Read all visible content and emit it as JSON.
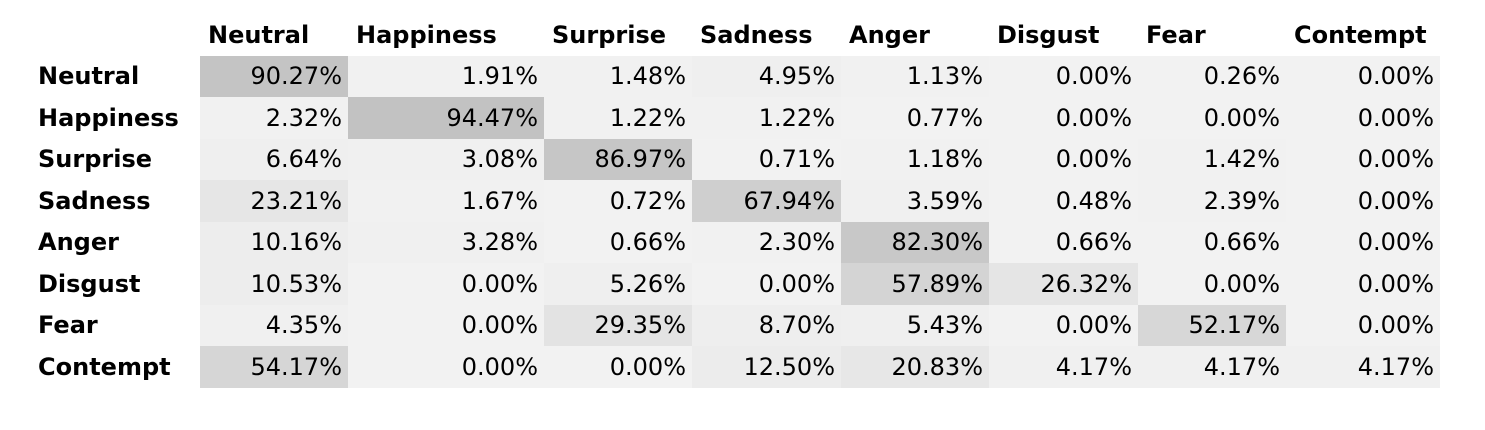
{
  "chart_data": {
    "type": "heatmap",
    "x_labels": [
      "Neutral",
      "Happiness",
      "Surprise",
      "Sadness",
      "Anger",
      "Disgust",
      "Fear",
      "Contempt"
    ],
    "y_labels": [
      "Neutral",
      "Happiness",
      "Surprise",
      "Sadness",
      "Anger",
      "Disgust",
      "Fear",
      "Contempt"
    ],
    "values": [
      [
        "90.27%",
        "1.91%",
        "1.48%",
        "4.95%",
        "1.13%",
        "0.00%",
        "0.26%",
        "0.00%"
      ],
      [
        "2.32%",
        "94.47%",
        "1.22%",
        "1.22%",
        "0.77%",
        "0.00%",
        "0.00%",
        "0.00%"
      ],
      [
        "6.64%",
        "3.08%",
        "86.97%",
        "0.71%",
        "1.18%",
        "0.00%",
        "1.42%",
        "0.00%"
      ],
      [
        "23.21%",
        "1.67%",
        "0.72%",
        "67.94%",
        "3.59%",
        "0.48%",
        "2.39%",
        "0.00%"
      ],
      [
        "10.16%",
        "3.28%",
        "0.66%",
        "2.30%",
        "82.30%",
        "0.66%",
        "0.66%",
        "0.00%"
      ],
      [
        "10.53%",
        "0.00%",
        "5.26%",
        "0.00%",
        "57.89%",
        "26.32%",
        "0.00%",
        "0.00%"
      ],
      [
        "4.35%",
        "0.00%",
        "29.35%",
        "8.70%",
        "5.43%",
        "0.00%",
        "52.17%",
        "0.00%"
      ],
      [
        "54.17%",
        "0.00%",
        "0.00%",
        "12.50%",
        "20.83%",
        "4.17%",
        "4.17%",
        "4.17%"
      ]
    ],
    "colors": {
      "low": "#f2f2f2",
      "high": "#bfbfbf"
    }
  }
}
